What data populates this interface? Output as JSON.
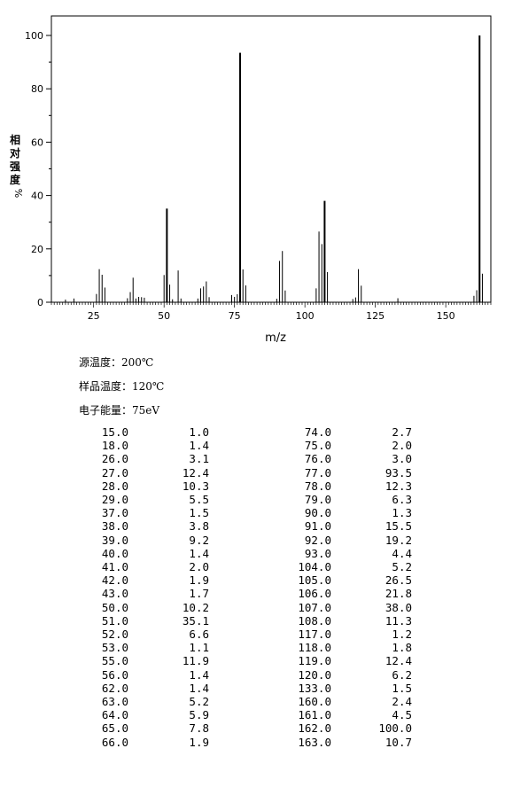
{
  "chart_data": {
    "type": "bar",
    "title": "",
    "xlabel": "m/z",
    "ylabel": "相对强度%",
    "xlim": [
      10,
      166
    ],
    "ylim": [
      0,
      100
    ],
    "x_ticks": [
      25,
      50,
      75,
      100,
      125,
      150
    ],
    "y_ticks": [
      0,
      20,
      40,
      60,
      80,
      100
    ],
    "grid": false,
    "x": [
      15,
      18,
      26,
      27,
      28,
      29,
      37,
      38,
      39,
      40,
      41,
      42,
      43,
      50,
      51,
      52,
      53,
      55,
      56,
      62,
      63,
      64,
      65,
      66,
      74,
      75,
      76,
      77,
      78,
      79,
      90,
      91,
      92,
      93,
      104,
      105,
      106,
      107,
      108,
      117,
      118,
      119,
      120,
      133,
      160,
      161,
      162,
      163
    ],
    "values": [
      1.0,
      1.4,
      3.1,
      12.4,
      10.3,
      5.5,
      1.5,
      3.8,
      9.2,
      1.4,
      2.0,
      1.9,
      1.7,
      10.2,
      35.1,
      6.6,
      1.1,
      11.9,
      1.4,
      1.4,
      5.2,
      5.9,
      7.8,
      1.9,
      2.7,
      2.0,
      3.0,
      93.5,
      12.3,
      6.3,
      1.3,
      15.5,
      19.2,
      4.4,
      5.2,
      26.5,
      21.8,
      38.0,
      11.3,
      1.2,
      1.8,
      12.4,
      6.2,
      1.5,
      2.4,
      4.5,
      100.0,
      10.7
    ]
  },
  "axis": {
    "y_tick_labels": [
      "0",
      "20",
      "40",
      "60",
      "80",
      "100"
    ],
    "x_tick_labels": [
      "25",
      "50",
      "75",
      "100",
      "125",
      "150"
    ],
    "ylabel_chars": [
      "相",
      "对",
      "强",
      "度",
      "%"
    ],
    "xlabel": "m/z"
  },
  "conditions": {
    "source_temp": "源温度：200℃",
    "sample_temp": "样品温度：120℃",
    "electron_energy": "电子能量：75eV"
  },
  "peak_table": [
    [
      "15.0",
      "1.0",
      "74.0",
      "2.7"
    ],
    [
      "18.0",
      "1.4",
      "75.0",
      "2.0"
    ],
    [
      "26.0",
      "3.1",
      "76.0",
      "3.0"
    ],
    [
      "27.0",
      "12.4",
      "77.0",
      "93.5"
    ],
    [
      "28.0",
      "10.3",
      "78.0",
      "12.3"
    ],
    [
      "29.0",
      "5.5",
      "79.0",
      "6.3"
    ],
    [
      "37.0",
      "1.5",
      "90.0",
      "1.3"
    ],
    [
      "38.0",
      "3.8",
      "91.0",
      "15.5"
    ],
    [
      "39.0",
      "9.2",
      "92.0",
      "19.2"
    ],
    [
      "40.0",
      "1.4",
      "93.0",
      "4.4"
    ],
    [
      "41.0",
      "2.0",
      "104.0",
      "5.2"
    ],
    [
      "42.0",
      "1.9",
      "105.0",
      "26.5"
    ],
    [
      "43.0",
      "1.7",
      "106.0",
      "21.8"
    ],
    [
      "50.0",
      "10.2",
      "107.0",
      "38.0"
    ],
    [
      "51.0",
      "35.1",
      "108.0",
      "11.3"
    ],
    [
      "52.0",
      "6.6",
      "117.0",
      "1.2"
    ],
    [
      "53.0",
      "1.1",
      "118.0",
      "1.8"
    ],
    [
      "55.0",
      "11.9",
      "119.0",
      "12.4"
    ],
    [
      "56.0",
      "1.4",
      "120.0",
      "6.2"
    ],
    [
      "62.0",
      "1.4",
      "133.0",
      "1.5"
    ],
    [
      "63.0",
      "5.2",
      "160.0",
      "2.4"
    ],
    [
      "64.0",
      "5.9",
      "161.0",
      "4.5"
    ],
    [
      "65.0",
      "7.8",
      "162.0",
      "100.0"
    ],
    [
      "66.0",
      "1.9",
      "163.0",
      "10.7"
    ]
  ]
}
